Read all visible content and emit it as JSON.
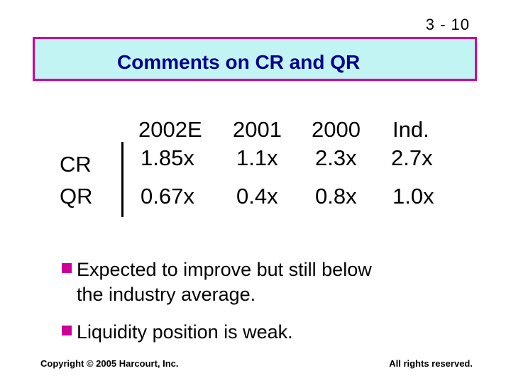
{
  "slide_number": "3 - 10",
  "title": "Comments on CR and QR",
  "table": {
    "headers": [
      "2002E",
      "2001",
      "2000",
      "Ind."
    ],
    "rows": [
      {
        "label": "CR",
        "values": [
          "1.85x",
          "1.1x",
          "2.3x",
          "2.7x"
        ]
      },
      {
        "label": "QR",
        "values": [
          "0.67x",
          "0.4x",
          "0.8x",
          "1.0x"
        ]
      }
    ]
  },
  "bullets": [
    {
      "line1": "Expected to improve but still below",
      "line2": "the industry average."
    },
    {
      "line1": "Liquidity position is weak."
    }
  ],
  "footer": {
    "left": "Copyright © 2005 Harcourt, Inc.",
    "right": "All rights reserved."
  },
  "colors": {
    "title_text": "#00008a",
    "title_bg": "#c2f4f4",
    "title_border": "#cc0099",
    "bullet_mark": "#cc0099"
  }
}
